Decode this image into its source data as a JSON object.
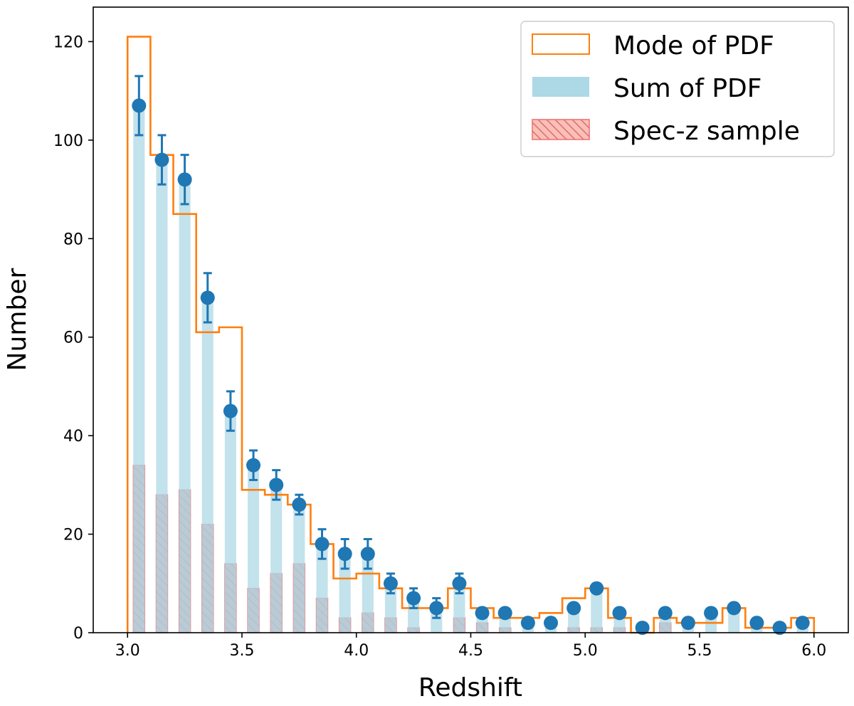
{
  "chart_data": {
    "type": "bar",
    "xlabel": "Redshift",
    "ylabel": "Number",
    "xlim": [
      2.85,
      6.15
    ],
    "ylim": [
      0,
      127
    ],
    "xticks": [
      3.0,
      3.5,
      4.0,
      4.5,
      5.0,
      5.5,
      6.0
    ],
    "xtick_labels": [
      "3.0",
      "3.5",
      "4.0",
      "4.5",
      "5.0",
      "5.5",
      "6.0"
    ],
    "yticks": [
      0,
      20,
      40,
      60,
      80,
      100,
      120
    ],
    "ytick_labels": [
      "0",
      "20",
      "40",
      "60",
      "80",
      "100",
      "120"
    ],
    "bin_edges": [
      3.0,
      3.1,
      3.2,
      3.3,
      3.4,
      3.5,
      3.6,
      3.7,
      3.8,
      3.9,
      4.0,
      4.1,
      4.2,
      4.3,
      4.4,
      4.5,
      4.6,
      4.7,
      4.8,
      4.9,
      5.0,
      5.1,
      5.2,
      5.3,
      5.4,
      5.5,
      5.6,
      5.7,
      5.8,
      5.9,
      6.0
    ],
    "bin_centers": [
      3.05,
      3.15,
      3.25,
      3.35,
      3.45,
      3.55,
      3.65,
      3.75,
      3.85,
      3.95,
      4.05,
      4.15,
      4.25,
      4.35,
      4.45,
      4.55,
      4.65,
      4.75,
      4.85,
      4.95,
      5.05,
      5.15,
      5.25,
      5.35,
      5.45,
      5.55,
      5.65,
      5.75,
      5.85,
      5.95
    ],
    "series": [
      {
        "name": "Mode of PDF",
        "kind": "step",
        "color": "#ff7f0e",
        "values": [
          121,
          97,
          85,
          61,
          62,
          29,
          28,
          26,
          18,
          11,
          12,
          9,
          5,
          5,
          9,
          5,
          3,
          3,
          4,
          7,
          9,
          3,
          0,
          3,
          2,
          2,
          5,
          1,
          1,
          3
        ]
      },
      {
        "name": "Sum of PDF",
        "kind": "bar",
        "color": "#add8e6",
        "values": [
          107,
          96,
          92,
          68,
          45,
          34,
          30,
          26,
          18,
          16,
          16,
          10,
          7,
          5,
          10,
          4,
          4,
          2,
          2,
          5,
          9,
          4,
          1,
          4,
          2,
          4,
          5,
          2,
          1,
          2
        ],
        "errors": [
          6,
          5,
          5,
          5,
          4,
          3,
          3,
          2,
          3,
          3,
          3,
          2,
          2,
          2,
          2,
          0,
          0,
          0,
          0,
          0,
          0,
          0,
          0,
          0,
          0,
          0,
          0,
          0,
          0,
          0
        ]
      },
      {
        "name": "Spec-z sample",
        "kind": "hatched-bar",
        "color": "#fa8072",
        "values": [
          34,
          28,
          29,
          22,
          14,
          9,
          12,
          14,
          7,
          3,
          4,
          3,
          1,
          0,
          3,
          2,
          1,
          0,
          0,
          1,
          1,
          1,
          0,
          2,
          0,
          0,
          0,
          0,
          0,
          0
        ]
      }
    ],
    "marker_color": "#1f77b4",
    "legend": {
      "position": "top-right",
      "entries": [
        "Mode of PDF",
        "Sum of PDF",
        "Spec-z sample"
      ]
    }
  }
}
